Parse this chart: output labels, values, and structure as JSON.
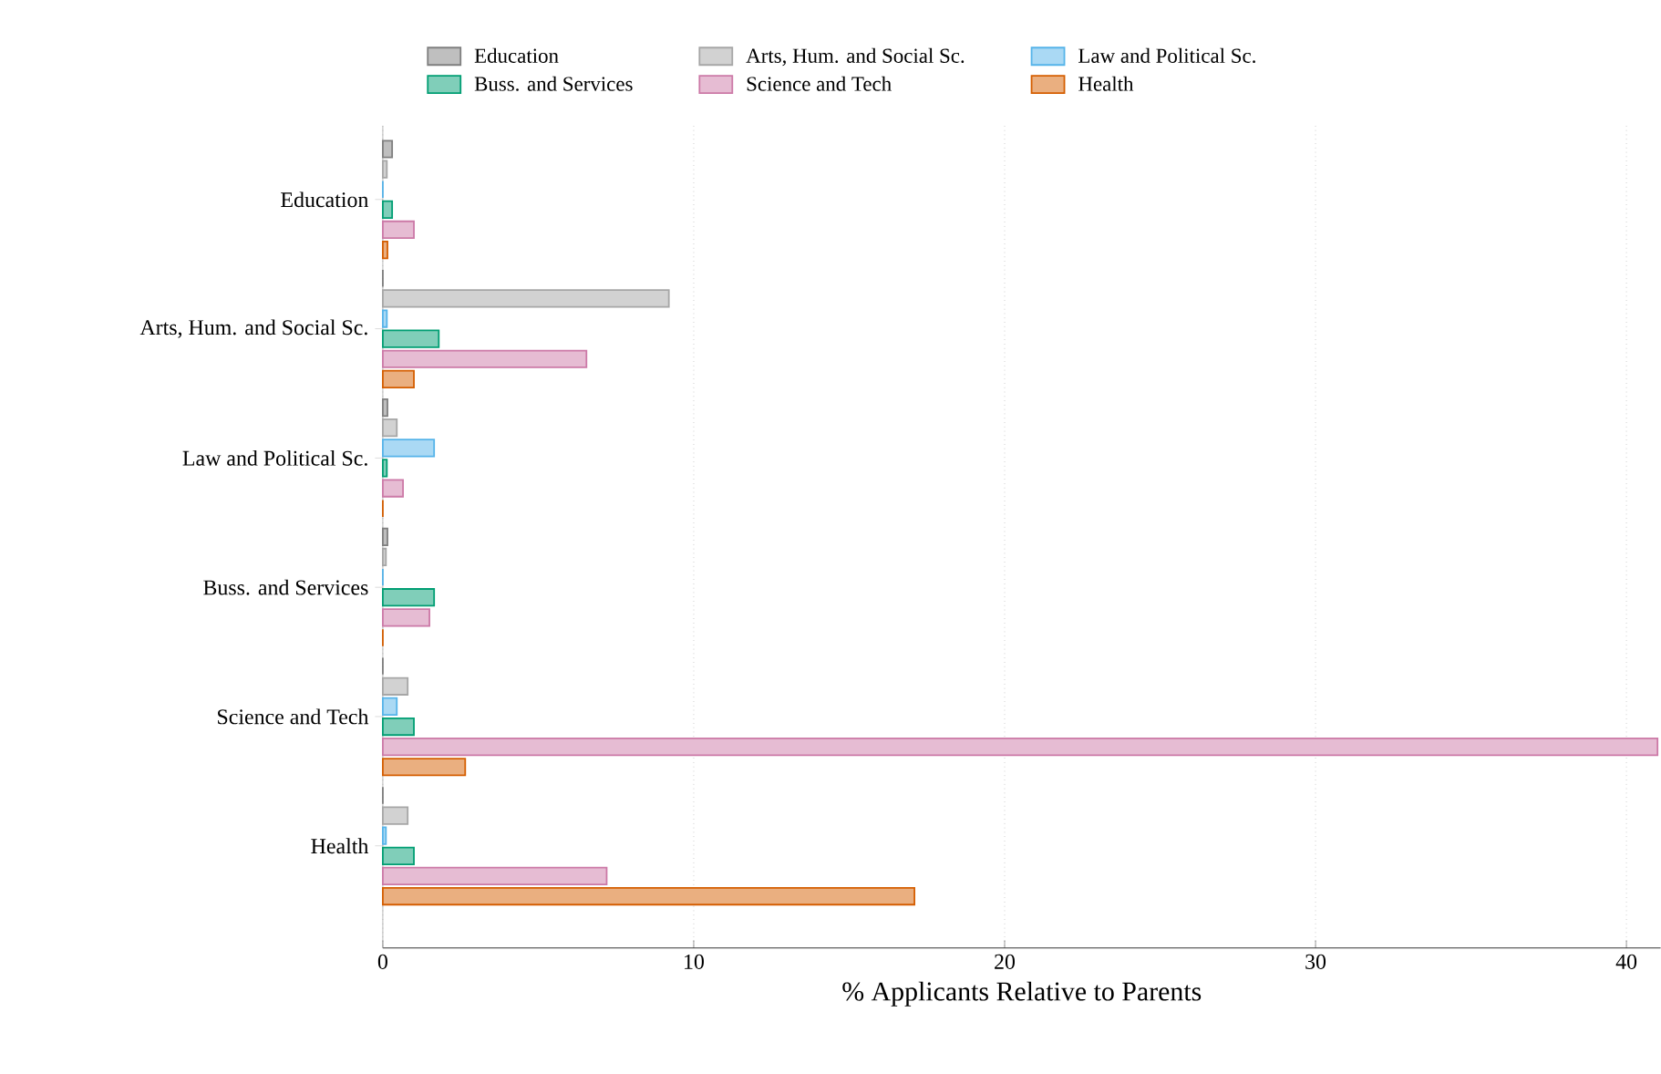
{
  "chart_data": {
    "type": "bar",
    "orientation": "horizontal",
    "categories": [
      "Education",
      "Arts, Hum. and Social Sc.",
      "Law and Political Sc.",
      "Buss. and Services",
      "Science and Tech",
      "Health"
    ],
    "series": [
      {
        "name": "Education",
        "color": "#7f7f7f",
        "values": [
          0.3,
          0,
          0.15,
          0.15,
          0,
          0
        ]
      },
      {
        "name": "Arts, Hum. and Social Sc.",
        "color": "#a6a6a6",
        "values": [
          0.13,
          9.2,
          0.45,
          0.1,
          0.8,
          0.8
        ]
      },
      {
        "name": "Law and Political Sc.",
        "color": "#56b4e9",
        "values": [
          0,
          0.13,
          1.65,
          0,
          0.45,
          0.1
        ]
      },
      {
        "name": "Buss. and Services",
        "color": "#009e73",
        "values": [
          0.3,
          1.8,
          0.13,
          1.65,
          1.0,
          1.0
        ]
      },
      {
        "name": "Science and Tech",
        "color": "#cc79a7",
        "values": [
          1.0,
          6.55,
          0.65,
          1.5,
          41.0,
          7.2
        ]
      },
      {
        "name": "Health",
        "color": "#d55e00",
        "values": [
          0.15,
          1.0,
          0,
          0,
          2.65,
          17.1
        ]
      }
    ],
    "xlim": [
      0,
      41.1
    ],
    "xticks": [
      0,
      10,
      20,
      30,
      40
    ],
    "xlabel": "% Applicants Relative to Parents",
    "grid": "x",
    "legend": "top"
  }
}
